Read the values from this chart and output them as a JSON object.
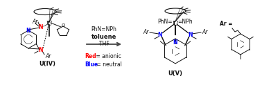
{
  "background_color": "#ffffff",
  "arrow_color": "#555555",
  "reaction_conditions": [
    "PhN=NPh",
    "toluene",
    "-THF"
  ],
  "legend_red_text": "Red",
  "legend_red_eq": " = anionic",
  "legend_blue_text": "Blue",
  "legend_blue_eq": " = neutral",
  "label_uiv": "U(IV)",
  "label_uv": "U(V)",
  "label_ar_eq": "Ar =",
  "red_color": "#ff0000",
  "blue_color": "#0000ff",
  "black_color": "#111111",
  "dark_gray": "#444444"
}
